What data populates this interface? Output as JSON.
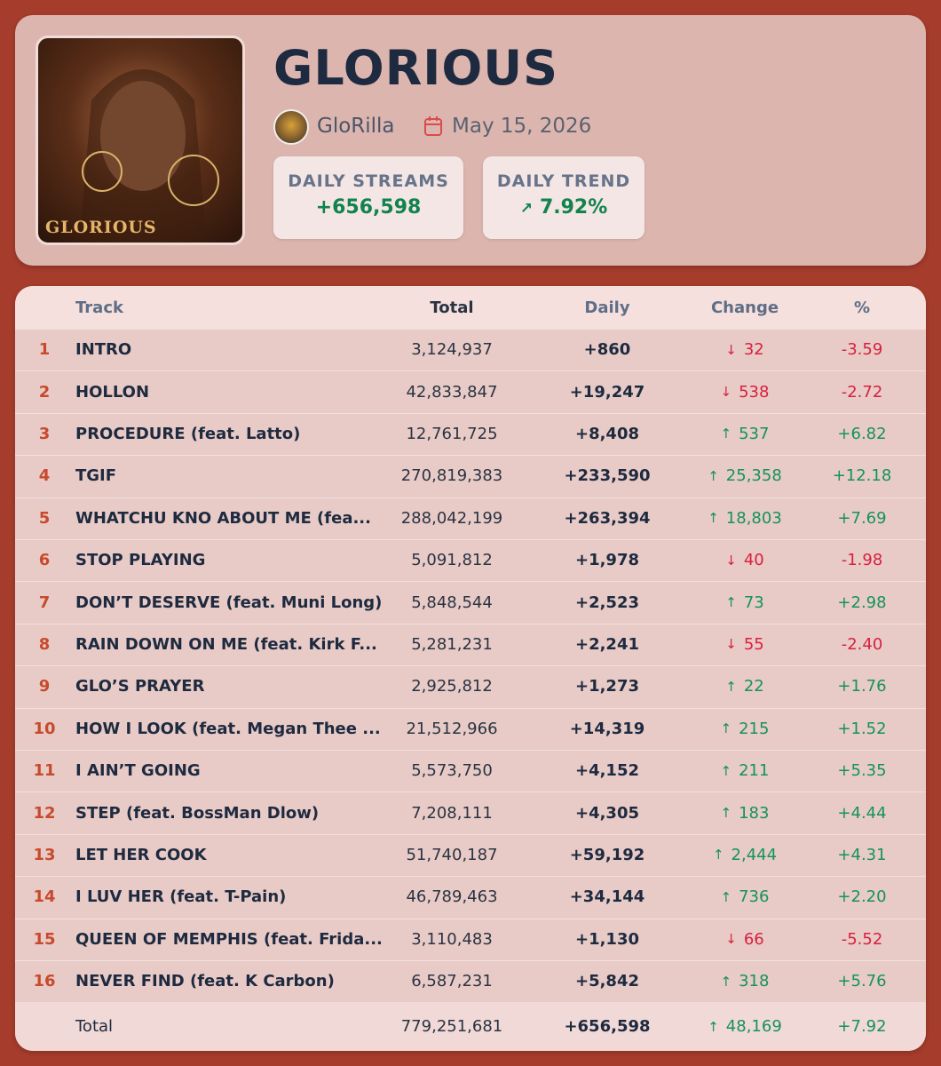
{
  "header": {
    "title": "GLORIOUS",
    "cover_caption": "GLORIOUS",
    "artist": "GloRilla",
    "date": "May 15, 2026",
    "stats": [
      {
        "label": "DAILY STREAMS",
        "value": "+656,598"
      },
      {
        "label": "DAILY TREND",
        "value": "7.92%"
      }
    ]
  },
  "table": {
    "columns": [
      "Track",
      "Total",
      "Daily",
      "Change",
      "%"
    ],
    "rows": [
      [
        "1",
        "INTRO",
        "3,124,937",
        "+860",
        "32",
        "-3.59"
      ],
      [
        "2",
        "HOLLON",
        "42,833,847",
        "+19,247",
        "538",
        "-2.72"
      ],
      [
        "3",
        "PROCEDURE (feat. Latto)",
        "12,761,725",
        "+8,408",
        "537",
        "+6.82"
      ],
      [
        "4",
        "TGIF",
        "270,819,383",
        "+233,590",
        "25,358",
        "+12.18"
      ],
      [
        "5",
        "WHATCHU KNO ABOUT ME (fea...",
        "288,042,199",
        "+263,394",
        "18,803",
        "+7.69"
      ],
      [
        "6",
        "STOP PLAYING",
        "5,091,812",
        "+1,978",
        "40",
        "-1.98"
      ],
      [
        "7",
        "DON’T DESERVE (feat. Muni Long)",
        "5,848,544",
        "+2,523",
        "73",
        "+2.98"
      ],
      [
        "8",
        "RAIN DOWN ON ME (feat. Kirk F...",
        "5,281,231",
        "+2,241",
        "55",
        "-2.40"
      ],
      [
        "9",
        "GLO’S PRAYER",
        "2,925,812",
        "+1,273",
        "22",
        "+1.76"
      ],
      [
        "10",
        "HOW I LOOK (feat. Megan Thee ...",
        "21,512,966",
        "+14,319",
        "215",
        "+1.52"
      ],
      [
        "11",
        "I AIN’T GOING",
        "5,573,750",
        "+4,152",
        "211",
        "+5.35"
      ],
      [
        "12",
        "STEP (feat. BossMan Dlow)",
        "7,208,111",
        "+4,305",
        "183",
        "+4.44"
      ],
      [
        "13",
        "LET HER COOK",
        "51,740,187",
        "+59,192",
        "2,444",
        "+4.31"
      ],
      [
        "14",
        "I LUV HER (feat. T-Pain)",
        "46,789,463",
        "+34,144",
        "736",
        "+2.20"
      ],
      [
        "15",
        "QUEEN OF MEMPHIS (feat. Frida...",
        "3,110,483",
        "+1,130",
        "66",
        "-5.52"
      ],
      [
        "16",
        "NEVER FIND (feat. K Carbon)",
        "6,587,231",
        "+5,842",
        "318",
        "+5.76"
      ]
    ],
    "footer": [
      "Total",
      "779,251,681",
      "+656,598",
      "48,169",
      "+7.92"
    ]
  }
}
